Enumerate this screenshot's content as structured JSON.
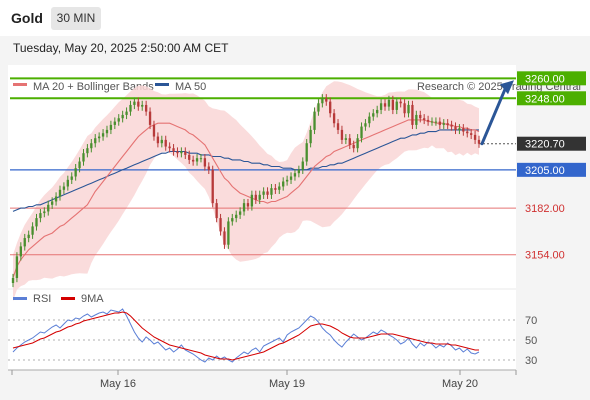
{
  "header": {
    "symbol": "Gold",
    "timeframe": "30 MIN"
  },
  "datetime": "Tuesday, May 20, 2025 2:50:00 AM CET",
  "legend": {
    "ma20": "MA 20 + Bollinger Bands",
    "ma50": "MA 50",
    "credit": "Research © 2025 Trading Central"
  },
  "rsi_legend": {
    "rsi": "RSI",
    "ma": "9MA"
  },
  "colors": {
    "ma20": "#e57373",
    "ma50": "#2b5697",
    "bollinger_fill": "#f9d6d6",
    "bull": "#4a8f2f",
    "bear": "#b73a3a",
    "green_level": "#4caf00",
    "blue_level": "#3366cc",
    "red_level": "#e57373",
    "last_price_bg": "#333333",
    "arrow": "#2b5697",
    "rsi": "#5b7fd6",
    "rsi_ma": "#d40000"
  },
  "chart_data": [
    {
      "type": "candlestick",
      "title": "Gold",
      "ylim": [
        3137,
        3268
      ],
      "xlabels": [
        "May 16",
        "May 19",
        "May 20"
      ],
      "levels": [
        {
          "value": 3260.0,
          "label": "3260.00",
          "kind": "resistance"
        },
        {
          "value": 3248.0,
          "label": "3248.00",
          "kind": "resistance"
        },
        {
          "value": 3220.7,
          "label": "3220.70",
          "kind": "last"
        },
        {
          "value": 3205.0,
          "label": "3205.00",
          "kind": "pivot"
        },
        {
          "value": 3182.0,
          "label": "3182.00",
          "kind": "support"
        },
        {
          "value": 3154.0,
          "label": "3154.00",
          "kind": "support"
        }
      ],
      "close": [
        3140,
        3153,
        3159,
        3164,
        3166,
        3171,
        3176,
        3179,
        3180,
        3184,
        3186,
        3189,
        3193,
        3195,
        3199,
        3201,
        3206,
        3210,
        3215,
        3218,
        3221,
        3224,
        3225,
        3227,
        3229,
        3232,
        3234,
        3236,
        3238,
        3240,
        3244,
        3246,
        3243,
        3244,
        3240,
        3232,
        3225,
        3221,
        3223,
        3219,
        3218,
        3216,
        3215,
        3216,
        3214,
        3211,
        3210,
        3212,
        3212,
        3207,
        3205,
        3185,
        3176,
        3168,
        3160,
        3174,
        3176,
        3178,
        3180,
        3185,
        3183,
        3190,
        3187,
        3190,
        3192,
        3190,
        3194,
        3193,
        3195,
        3198,
        3199,
        3201,
        3203,
        3205,
        3210,
        3221,
        3229,
        3240,
        3245,
        3248,
        3246,
        3239,
        3233,
        3229,
        3223,
        3224,
        3220,
        3218,
        3224,
        3231,
        3233,
        3237,
        3239,
        3241,
        3245,
        3243,
        3247,
        3241,
        3246,
        3245,
        3239,
        3244,
        3232,
        3238,
        3236,
        3235,
        3234,
        3234,
        3234,
        3232,
        3233,
        3232,
        3231,
        3229,
        3230,
        3228,
        3227,
        3226,
        3223,
        3220.7
      ],
      "ma20": [
        3140,
        3147,
        3151,
        3154,
        3157,
        3159,
        3161,
        3163,
        3165,
        3166,
        3167,
        3169,
        3171,
        3172,
        3174,
        3176,
        3178,
        3180,
        3182,
        3184,
        3188,
        3192,
        3195,
        3198,
        3201,
        3204,
        3207,
        3210,
        3213,
        3216,
        3219,
        3222,
        3225,
        3227,
        3229,
        3231,
        3232,
        3233,
        3233,
        3233,
        3233,
        3232,
        3231,
        3230,
        3229,
        3227,
        3226,
        3224,
        3222,
        3220,
        3216,
        3212,
        3208,
        3204,
        3200,
        3198,
        3195,
        3193,
        3191,
        3190,
        3189,
        3188,
        3187,
        3186,
        3186,
        3185,
        3186,
        3186,
        3187,
        3188,
        3189,
        3191,
        3193,
        3195,
        3198,
        3201,
        3204,
        3207,
        3209,
        3211,
        3213,
        3214,
        3216,
        3217,
        3218,
        3219,
        3220,
        3221,
        3222,
        3223,
        3224,
        3225,
        3226,
        3227,
        3228,
        3229,
        3230,
        3231,
        3232,
        3233,
        3234,
        3235,
        3235,
        3235,
        3235,
        3235,
        3234,
        3234,
        3233,
        3233,
        3233,
        3232,
        3232,
        3231,
        3231,
        3230,
        3230,
        3229,
        3229,
        3228
      ],
      "ma50": [
        3180,
        3181,
        3182,
        3182,
        3183,
        3183,
        3184,
        3184,
        3185,
        3186,
        3187,
        3188,
        3189,
        3190,
        3191,
        3192,
        3193,
        3194,
        3195,
        3196,
        3197,
        3198,
        3199,
        3200,
        3201,
        3202,
        3203,
        3204,
        3205,
        3206,
        3207,
        3208,
        3209,
        3210,
        3211,
        3212,
        3213,
        3214,
        3215,
        3215,
        3216,
        3216,
        3216,
        3216,
        3216,
        3215,
        3215,
        3215,
        3214,
        3214,
        3214,
        3213,
        3213,
        3213,
        3212,
        3212,
        3211,
        3211,
        3211,
        3210,
        3210,
        3209,
        3209,
        3209,
        3208,
        3208,
        3207,
        3207,
        3207,
        3206,
        3206,
        3206,
        3205,
        3205,
        3205,
        3205,
        3206,
        3206,
        3206,
        3207,
        3207,
        3208,
        3208,
        3209,
        3209,
        3210,
        3211,
        3212,
        3213,
        3214,
        3215,
        3216,
        3217,
        3218,
        3219,
        3220,
        3221,
        3222,
        3223,
        3224,
        3224,
        3225,
        3226,
        3226,
        3227,
        3227,
        3228,
        3228,
        3228,
        3229,
        3229,
        3229,
        3229,
        3229,
        3229,
        3229,
        3229,
        3229,
        3229,
        3229
      ],
      "forecast_arrow": {
        "from": 3220.7,
        "to": 3257
      }
    },
    {
      "type": "line",
      "title": "RSI",
      "ylim": [
        20,
        85
      ],
      "ticks": [
        70,
        50,
        30
      ],
      "series": [
        {
          "name": "RSI",
          "values": [
            38,
            42,
            45,
            48,
            50,
            52,
            55,
            58,
            57,
            60,
            63,
            65,
            62,
            66,
            70,
            69,
            72,
            71,
            74,
            76,
            73,
            75,
            77,
            78,
            76,
            80,
            79,
            78,
            81,
            74,
            66,
            58,
            52,
            48,
            53,
            50,
            46,
            48,
            44,
            40,
            42,
            38,
            41,
            45,
            40,
            38,
            36,
            33,
            30,
            28,
            32,
            30,
            34,
            31,
            33,
            30,
            28,
            32,
            35,
            38,
            36,
            40,
            42,
            38,
            44,
            46,
            48,
            50,
            52,
            48,
            55,
            58,
            60,
            62,
            66,
            70,
            74,
            72,
            68,
            62,
            58,
            55,
            50,
            46,
            43,
            48,
            52,
            56,
            53,
            50,
            52,
            55,
            58,
            56,
            60,
            58,
            55,
            53,
            50,
            46,
            48,
            52,
            46,
            42,
            47,
            44,
            48,
            46,
            42,
            45,
            43,
            47,
            44,
            40,
            42,
            38,
            41,
            37,
            36,
            38
          ]
        },
        {
          "name": "9MA",
          "values": [
            42,
            43,
            44,
            45,
            46,
            47,
            49,
            51,
            52,
            54,
            56,
            58,
            59,
            61,
            63,
            64,
            66,
            67,
            69,
            70,
            71,
            72,
            73,
            74,
            75,
            76,
            77,
            77,
            78,
            77,
            74,
            70,
            66,
            62,
            59,
            56,
            53,
            51,
            49,
            47,
            45,
            44,
            43,
            42,
            41,
            40,
            39,
            38,
            37,
            35,
            34,
            33,
            32,
            31,
            31,
            31,
            30,
            31,
            32,
            33,
            34,
            35,
            36,
            37,
            38,
            40,
            42,
            44,
            46,
            47,
            49,
            51,
            53,
            55,
            58,
            61,
            64,
            65,
            66,
            66,
            65,
            64,
            62,
            60,
            57,
            55,
            53,
            52,
            52,
            52,
            52,
            53,
            54,
            55,
            56,
            56,
            56,
            56,
            55,
            54,
            53,
            52,
            51,
            50,
            49,
            48,
            47,
            47,
            46,
            46,
            46,
            46,
            45,
            45,
            44,
            43,
            42,
            41,
            40,
            40
          ]
        }
      ]
    }
  ]
}
